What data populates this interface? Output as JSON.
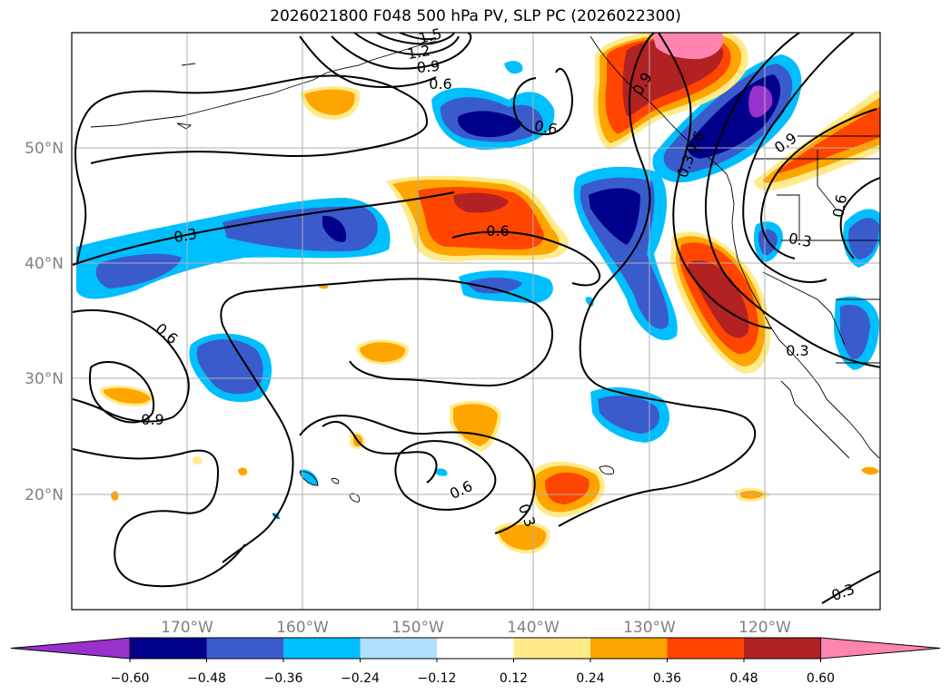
{
  "title": "2026021800 F048 500 hPa PV, SLP PC (2026022300)",
  "lat_labels": [
    "50°N",
    "40°N",
    "30°N",
    "20°N"
  ],
  "lon_labels": [
    "170°W",
    "160°W",
    "150°W",
    "140°W",
    "130°W",
    "120°W"
  ],
  "colorbar": {
    "colors": [
      "#9932cc",
      "#00008b",
      "#3a5bcc",
      "#00bfff",
      "#b0e0ff",
      "#ffffff",
      "#ffeb8a",
      "#ffa500",
      "#ff4500",
      "#b22222",
      "#ff85b0"
    ],
    "ticks": [
      "−0.60",
      "−0.48",
      "−0.36",
      "−0.24",
      "−0.12",
      "0.12",
      "0.24",
      "0.36",
      "0.48",
      "0.60"
    ]
  },
  "contour_labels": [
    "1.5",
    "1.2",
    "0.9",
    "0.6",
    "0.6",
    "0.6",
    "0.3",
    "0.6",
    "0.9",
    "0.6",
    "0.3",
    "0.3",
    "0.3",
    "0.3",
    "0.9",
    "0.6",
    "0.3",
    "0.9",
    "0.6"
  ],
  "colors": {
    "contour": "#000000",
    "grid": "#b0b0b0",
    "axis_text": "#808080"
  }
}
